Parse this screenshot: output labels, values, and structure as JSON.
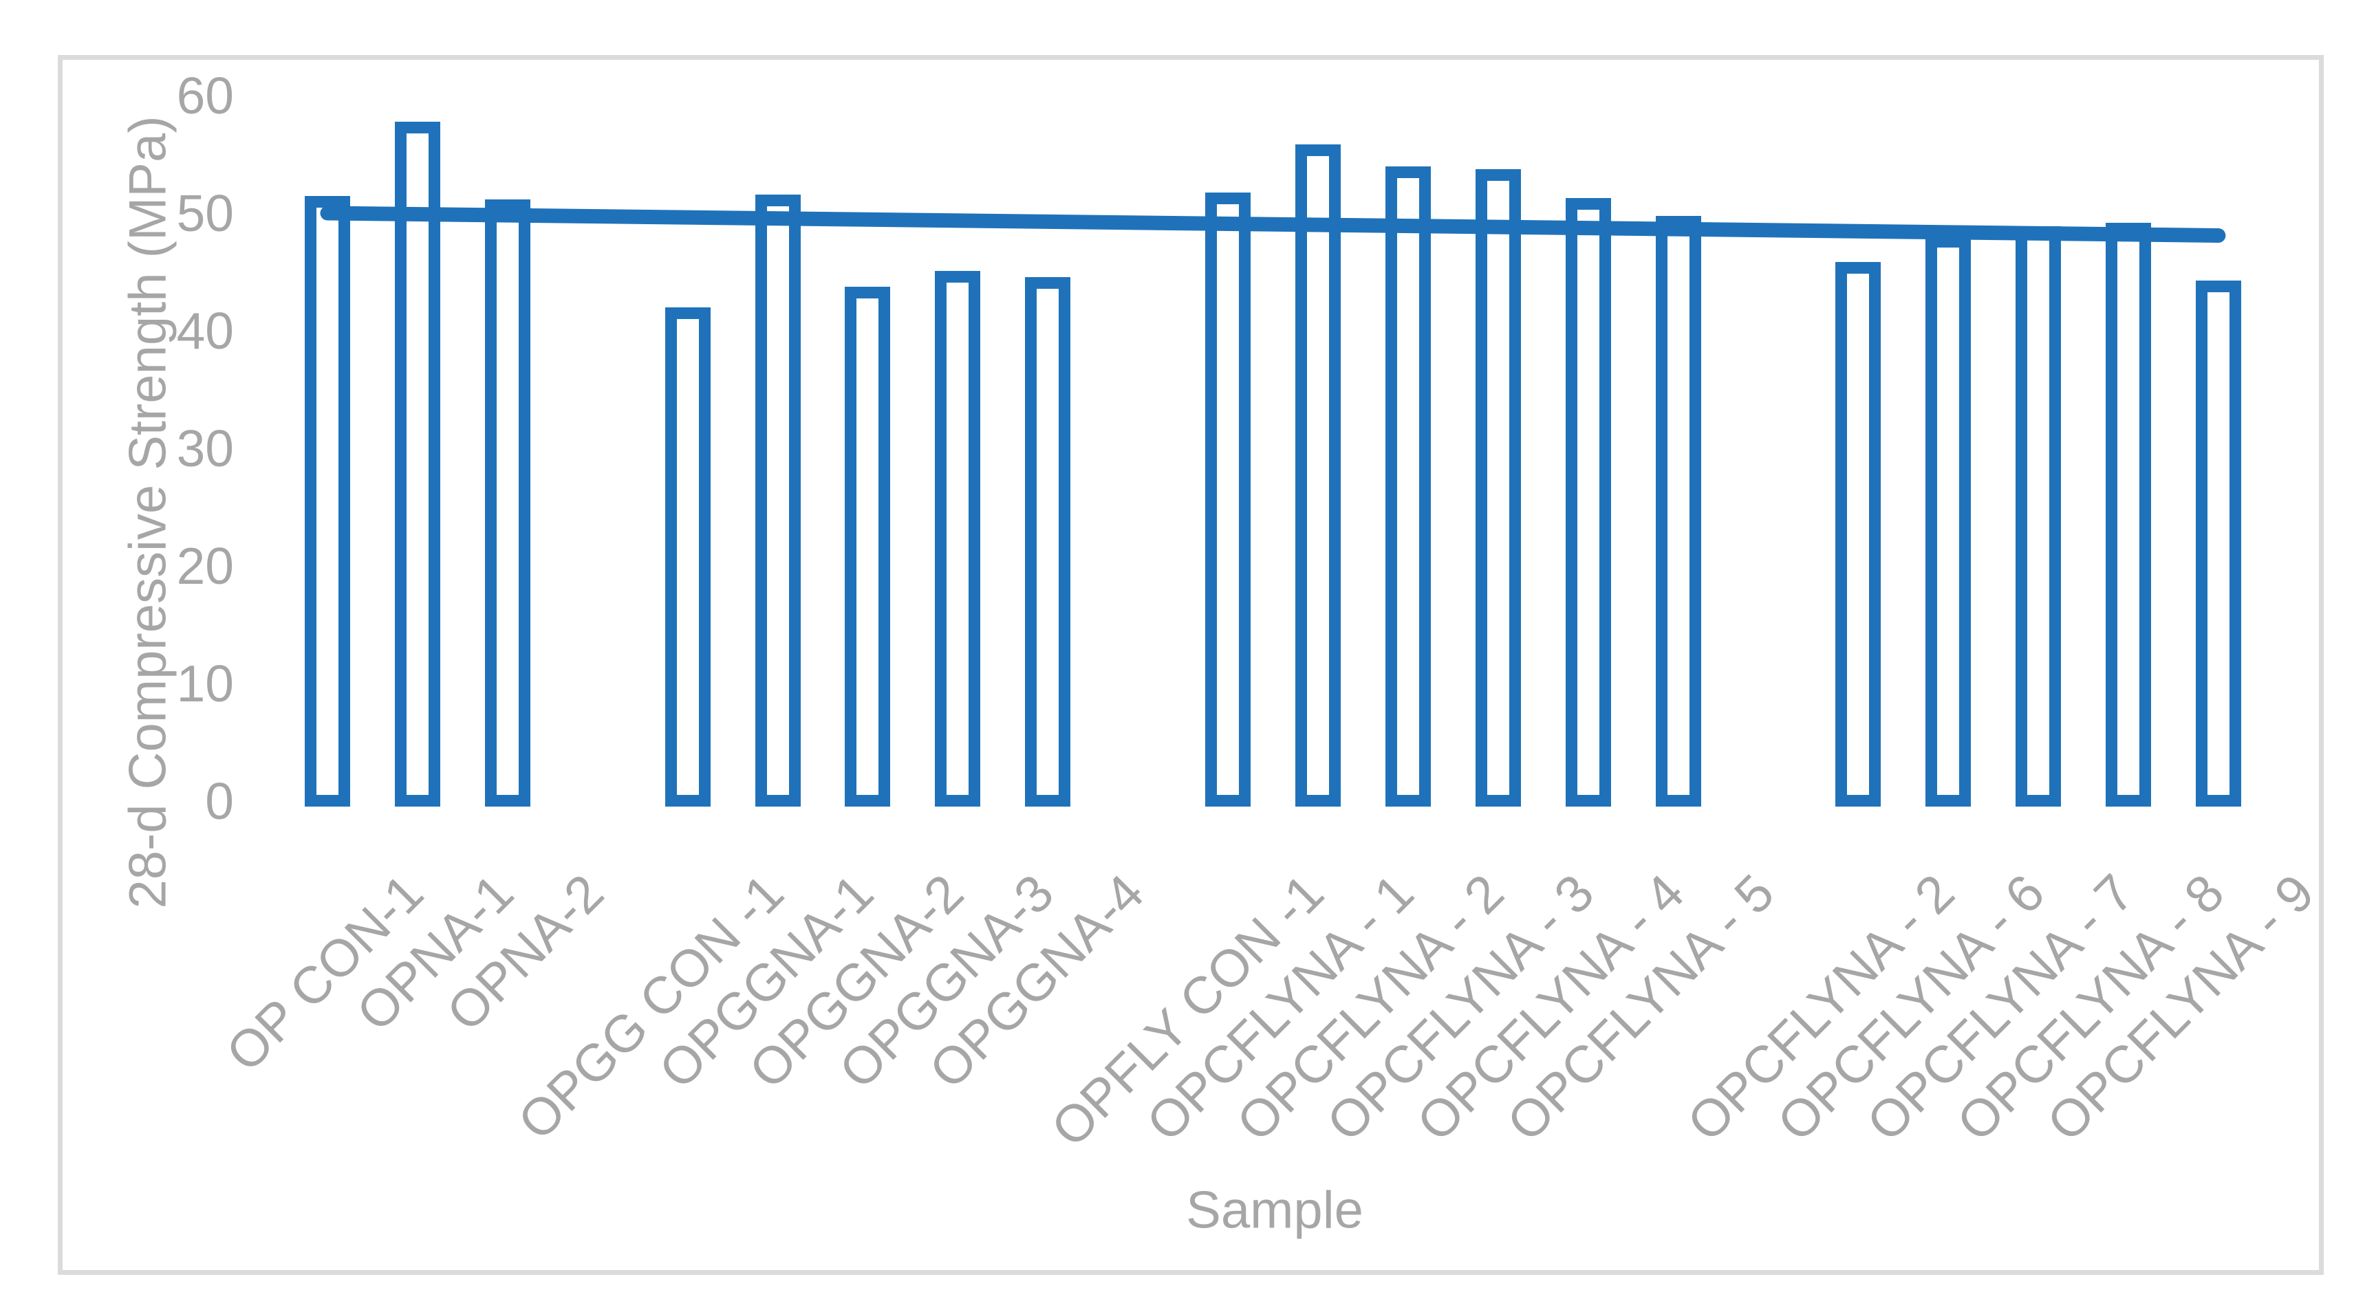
{
  "chart_data": {
    "type": "bar",
    "title": "",
    "xlabel": "Sample",
    "ylabel": "28-d Compressive Strength (MPa)",
    "ylim": [
      0,
      60
    ],
    "yticks": [
      0,
      10,
      20,
      30,
      40,
      50,
      60
    ],
    "grid": false,
    "legend": false,
    "bar_fill_color": "#FFFFFF",
    "bar_border_color": "#1F72B9",
    "axis_text_color": "#A6A6A6",
    "chart_border_color": "#DBDBDB",
    "groups": [
      {
        "categories": [
          "OP CON-1",
          "OPNA-1",
          "OPNA-2"
        ],
        "values": [
          51.0,
          57.3,
          50.7
        ]
      },
      {
        "categories": [
          "OPGG CON -1",
          "OPGGNA-1",
          "OPGGNA-2",
          "OPGGNA-3",
          "OPGGNA-4"
        ],
        "values": [
          41.5,
          51.1,
          43.3,
          44.6,
          44.1
        ]
      },
      {
        "categories": [
          "OPFLY CON -1",
          "OPCFLYNA - 1",
          "OPCFLYNA - 2",
          "OPCFLYNA - 3",
          "OPCFLYNA - 4",
          "OPCFLYNA - 5"
        ],
        "values": [
          51.3,
          55.4,
          53.5,
          53.3,
          50.8,
          49.3
        ]
      },
      {
        "categories": [
          "OPCFLYNA - 2",
          "OPCFLYNA - 6",
          "OPCFLYNA - 7",
          "OPCFLYNA - 8",
          "OPCFLYNA - 9"
        ],
        "values": [
          45.4,
          47.6,
          48.4,
          48.7,
          43.8
        ]
      }
    ],
    "trendline": {
      "start_value": 50.0,
      "end_value": 48.1,
      "color": "#1F72B9"
    }
  }
}
